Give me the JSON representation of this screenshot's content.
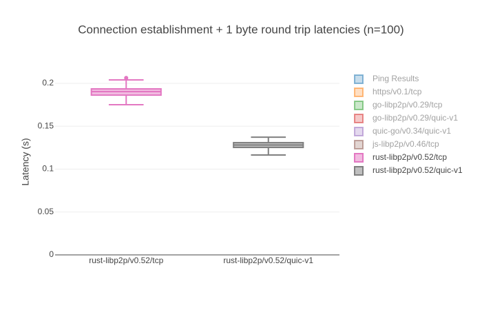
{
  "chart_data": {
    "type": "box",
    "title": "Connection establishment + 1 byte round trip latencies (n=100)",
    "y_label": "Latency (s)",
    "categories": [
      "rust-libp2p/v0.52/tcp",
      "rust-libp2p/v0.52/quic-v1"
    ],
    "ylim": [
      0,
      0.2169
    ],
    "yticks": [
      0,
      0.05,
      0.1,
      0.15,
      0.2
    ],
    "grid": true,
    "legend": "right",
    "series": [
      {
        "name": "Ping Results",
        "color": "#1f77b4",
        "visible": false
      },
      {
        "name": "https/v0.1/tcp",
        "color": "#ff7f0e",
        "visible": false
      },
      {
        "name": "go-libp2p/v0.29/tcp",
        "color": "#2ca02c",
        "visible": false
      },
      {
        "name": "go-libp2p/v0.29/quic-v1",
        "color": "#d62728",
        "visible": false
      },
      {
        "name": "quic-go/v0.34/quic-v1",
        "color": "#9467bd",
        "visible": false
      },
      {
        "name": "js-libp2p/v0.46/tcp",
        "color": "#8c564b",
        "visible": false
      },
      {
        "name": "rust-libp2p/v0.52/tcp",
        "color": "#e377c2",
        "visible": true,
        "category": 0,
        "stats": {
          "min": 0.1751,
          "q1": 0.1863,
          "median": 0.1904,
          "q3": 0.1936,
          "max": 0.204
        },
        "outliers": [
          0.2064
        ]
      },
      {
        "name": "rust-libp2p/v0.52/quic-v1",
        "color": "#7f7f7f",
        "visible": true,
        "category": 1,
        "stats": {
          "min": 0.1165,
          "q1": 0.1253,
          "median": 0.1281,
          "q3": 0.1309,
          "max": 0.1373
        },
        "outliers": []
      }
    ]
  }
}
